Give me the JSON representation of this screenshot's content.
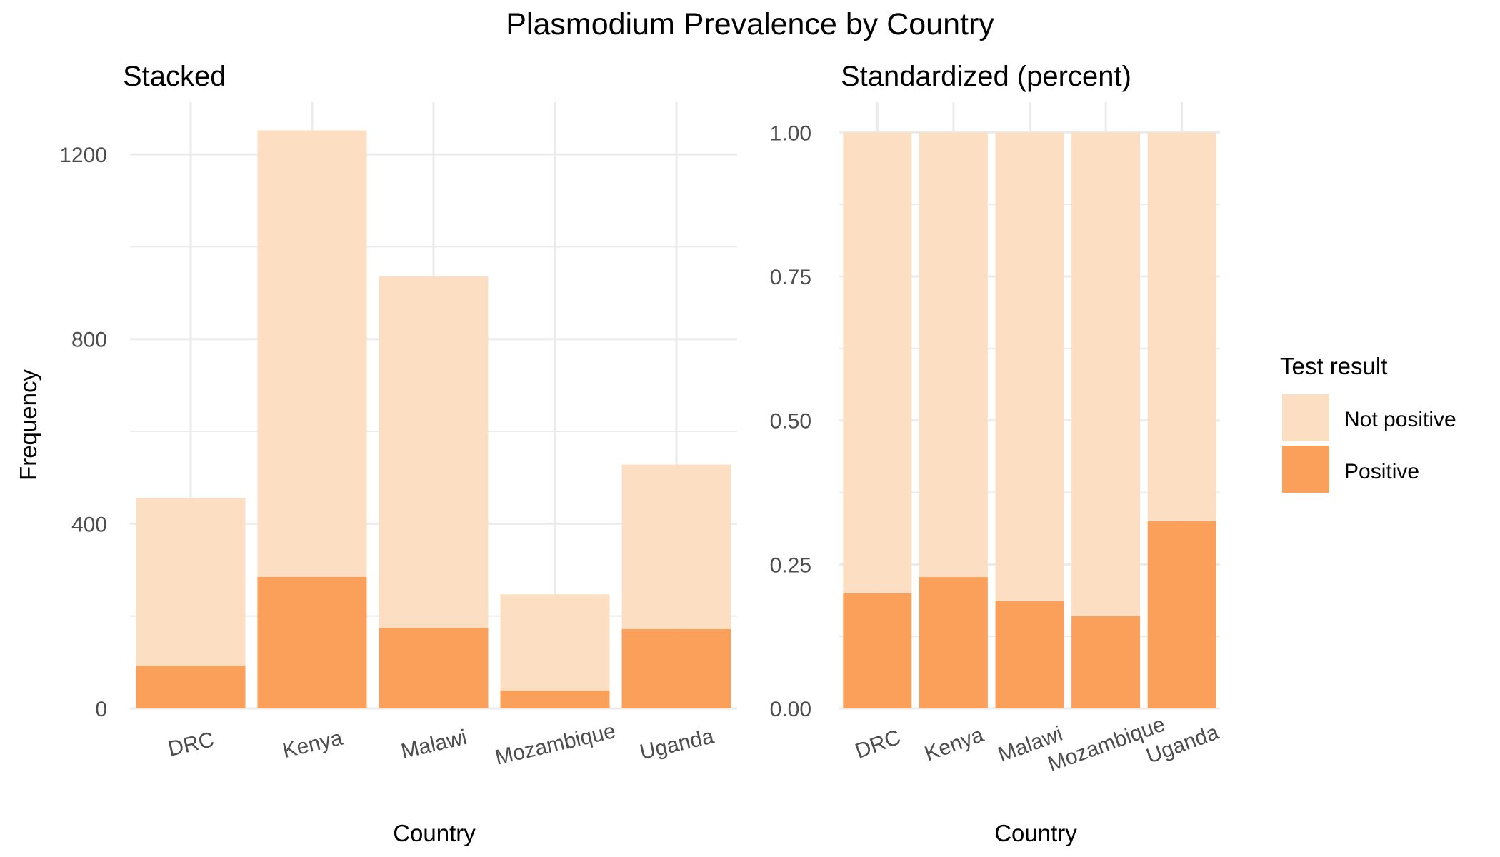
{
  "title": "Plasmodium Prevalence by Country",
  "colors": {
    "positive": "#FAA05A",
    "not_positive": "#FCDFC3",
    "grid": "#EBEBEB",
    "tick_text": "#4D4D4D"
  },
  "legend": {
    "title": "Test result",
    "placement": "right",
    "items": [
      {
        "label": "Not positive",
        "color": "#FCDFC3"
      },
      {
        "label": "Positive",
        "color": "#FAA05A"
      }
    ]
  },
  "chart_data": [
    {
      "type": "bar",
      "stacked": true,
      "title": "Stacked",
      "xlabel": "Country",
      "ylabel": "Frequency",
      "categories": [
        "DRC",
        "Kenya",
        "Malawi",
        "Mozambique",
        "Uganda"
      ],
      "series": [
        {
          "name": "Positive",
          "values": [
            92,
            285,
            174,
            39,
            172
          ]
        },
        {
          "name": "Not positive",
          "values": [
            364,
            967,
            762,
            208,
            356
          ]
        }
      ],
      "yticks": [
        "0",
        "400",
        "800",
        "1200"
      ],
      "ylim": [
        0,
        1310
      ],
      "grid": true
    },
    {
      "type": "bar",
      "stacked": true,
      "title": "Standardized (percent)",
      "xlabel": "Country",
      "ylabel": "",
      "categories": [
        "DRC",
        "Kenya",
        "Malawi",
        "Mozambique",
        "Uganda"
      ],
      "series": [
        {
          "name": "Positive",
          "values": [
            0.2,
            0.228,
            0.186,
            0.16,
            0.325
          ]
        },
        {
          "name": "Not positive",
          "values": [
            0.8,
            0.772,
            0.814,
            0.84,
            0.675
          ]
        }
      ],
      "yticks": [
        "0.00",
        "0.25",
        "0.50",
        "0.75",
        "1.00"
      ],
      "ylim": [
        0,
        1.05
      ],
      "grid": true
    }
  ]
}
